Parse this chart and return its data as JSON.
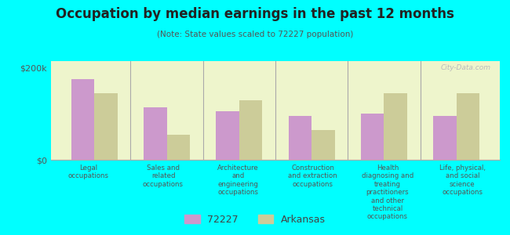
{
  "title": "Occupation by median earnings in the past 12 months",
  "subtitle": "(Note: State values scaled to 72227 population)",
  "background_color": "#00FFFF",
  "plot_bg_color": "#EEF5CC",
  "categories": [
    "Legal\noccupations",
    "Sales and\nrelated\noccupations",
    "Architecture\nand\nengineering\noccupations",
    "Construction\nand extraction\noccupations",
    "Health\ndiagnosing and\ntreating\npractitioners\nand other\ntechnical\noccupations",
    "Life, physical,\nand social\nscience\noccupations"
  ],
  "values_72227": [
    175000,
    115000,
    105000,
    95000,
    100000,
    95000
  ],
  "values_arkansas": [
    145000,
    55000,
    130000,
    65000,
    145000,
    145000
  ],
  "color_72227": "#CC99CC",
  "color_arkansas": "#CCCC99",
  "ylim": [
    0,
    215000
  ],
  "yticks": [
    0,
    200000
  ],
  "ytick_labels": [
    "$0",
    "$200k"
  ],
  "legend_label_72227": "72227",
  "legend_label_arkansas": "Arkansas",
  "watermark": "City-Data.com"
}
